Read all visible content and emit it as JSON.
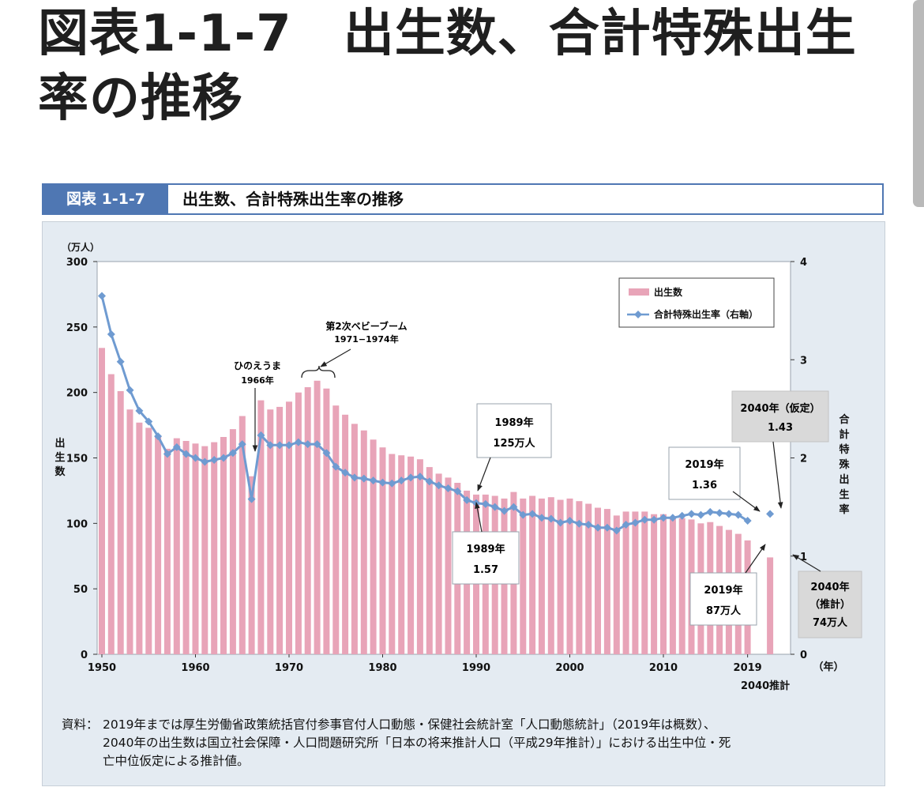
{
  "page": {
    "title": "図表1-1-7　出生数、合計特殊出生率の推移"
  },
  "figure": {
    "number": "図表 1-1-7",
    "title": "出生数、合計特殊出生率の推移"
  },
  "source": {
    "label": "資料：",
    "lines": [
      "2019年までは厚生労働省政策統括官付参事官付人口動態・保健社会統計室「人口動態統計」（2019年は概数）、",
      "2040年の出生数は国立社会保障・人口問題研究所「日本の将来推計人口（平成29年推計）」における出生中位・死",
      "亡中位仮定による推計値。"
    ]
  },
  "chart_data": {
    "type": "bar+line",
    "colors": {
      "bar": "#e8a4b8",
      "line": "#6f9bd1",
      "panel": "#e4ebf2"
    },
    "x": [
      1950,
      1951,
      1952,
      1953,
      1954,
      1955,
      1956,
      1957,
      1958,
      1959,
      1960,
      1961,
      1962,
      1963,
      1964,
      1965,
      1966,
      1967,
      1968,
      1969,
      1970,
      1971,
      1972,
      1973,
      1974,
      1975,
      1976,
      1977,
      1978,
      1979,
      1980,
      1981,
      1982,
      1983,
      1984,
      1985,
      1986,
      1987,
      1988,
      1989,
      1990,
      1991,
      1992,
      1993,
      1994,
      1995,
      1996,
      1997,
      1998,
      1999,
      2000,
      2001,
      2002,
      2003,
      2004,
      2005,
      2006,
      2007,
      2008,
      2009,
      2010,
      2011,
      2012,
      2013,
      2014,
      2015,
      2016,
      2017,
      2018,
      2019,
      "2040"
    ],
    "x_ticks": [
      "1950",
      "1960",
      "1970",
      "1980",
      "1990",
      "2000",
      "2010",
      "2019"
    ],
    "x_extra_label": "2040推計",
    "x_unit": "（年）",
    "births_unit": "（万人）",
    "left_axis": {
      "label": "出生数",
      "ticks": [
        "300",
        "250",
        "200",
        "150",
        "100",
        "50",
        "0"
      ],
      "range": [
        0,
        300
      ]
    },
    "right_axis": {
      "label": "合計特殊出生率",
      "ticks": [
        "4",
        "3",
        "2",
        "1",
        "0"
      ],
      "range": [
        0,
        4
      ]
    },
    "series": [
      {
        "name": "出生数",
        "kind": "bar",
        "axis": "left",
        "values": [
          234,
          214,
          201,
          187,
          177,
          173,
          167,
          157,
          165,
          163,
          161,
          159,
          162,
          166,
          172,
          182,
          136,
          194,
          187,
          189,
          193,
          200,
          204,
          209,
          203,
          190,
          183,
          176,
          171,
          164,
          158,
          153,
          152,
          151,
          149,
          143,
          138,
          135,
          131,
          125,
          122,
          122,
          121,
          119,
          124,
          119,
          121,
          119,
          120,
          118,
          119,
          117,
          115,
          112,
          111,
          106,
          109,
          109,
          109,
          107,
          107,
          105,
          104,
          103,
          100,
          101,
          98,
          95,
          92,
          87,
          74
        ]
      },
      {
        "name": "合計特殊出生率（右軸）",
        "kind": "line",
        "axis": "right",
        "values": [
          3.65,
          3.26,
          2.98,
          2.69,
          2.48,
          2.37,
          2.22,
          2.04,
          2.11,
          2.04,
          2.0,
          1.96,
          1.98,
          2.0,
          2.05,
          2.14,
          1.58,
          2.23,
          2.13,
          2.13,
          2.13,
          2.16,
          2.14,
          2.14,
          2.05,
          1.91,
          1.85,
          1.8,
          1.79,
          1.77,
          1.75,
          1.74,
          1.77,
          1.8,
          1.81,
          1.76,
          1.72,
          1.69,
          1.66,
          1.57,
          1.54,
          1.53,
          1.5,
          1.46,
          1.5,
          1.42,
          1.43,
          1.39,
          1.38,
          1.34,
          1.36,
          1.33,
          1.32,
          1.29,
          1.29,
          1.26,
          1.32,
          1.34,
          1.37,
          1.37,
          1.39,
          1.39,
          1.41,
          1.43,
          1.42,
          1.45,
          1.44,
          1.43,
          1.42,
          1.36,
          1.43
        ]
      }
    ],
    "legend": {
      "placement": "top-right",
      "items": [
        "出生数",
        "合計特殊出生率（右軸）"
      ]
    },
    "annotations": {
      "hinoeuma": [
        "ひのえうま",
        "1966年"
      ],
      "babyboom": [
        "第2次ベビーブーム",
        "1971−1974年"
      ],
      "births_1989": [
        "1989年",
        "125万人"
      ],
      "tfr_1989": [
        "1989年",
        "1.57"
      ],
      "tfr_2019": [
        "2019年",
        "1.36"
      ],
      "tfr_2040": [
        "2040年（仮定）",
        "1.43"
      ],
      "births_2019": [
        "2019年",
        "87万人"
      ],
      "births_2040": [
        "2040年",
        "（推計）",
        "74万人"
      ]
    }
  }
}
